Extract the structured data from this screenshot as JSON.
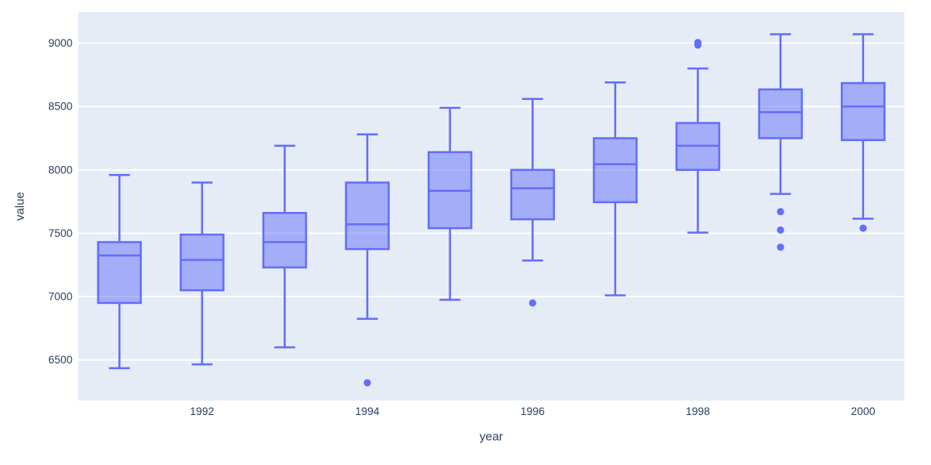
{
  "chart_data": {
    "type": "box",
    "title": "",
    "xlabel": "year",
    "ylabel": "value",
    "x_ticks": [
      1992,
      1994,
      1996,
      1998,
      2000
    ],
    "y_ticks": [
      6500,
      7000,
      7500,
      8000,
      8500,
      9000
    ],
    "x_range": [
      1990.5,
      2000.5
    ],
    "y_range": [
      6180,
      9245
    ],
    "grid": "horizontal-only",
    "legend": "none",
    "series": [
      {
        "year": 1991,
        "low": 6435,
        "q1": 6950,
        "median": 7325,
        "q3": 7430,
        "high": 7960,
        "outliers": []
      },
      {
        "year": 1992,
        "low": 6465,
        "q1": 7050,
        "median": 7290,
        "q3": 7490,
        "high": 7900,
        "outliers": []
      },
      {
        "year": 1993,
        "low": 6600,
        "q1": 7230,
        "median": 7430,
        "q3": 7660,
        "high": 8190,
        "outliers": []
      },
      {
        "year": 1994,
        "low": 6825,
        "q1": 7375,
        "median": 7570,
        "q3": 7900,
        "high": 8280,
        "outliers": [
          6320
        ]
      },
      {
        "year": 1995,
        "low": 6975,
        "q1": 7540,
        "median": 7835,
        "q3": 8140,
        "high": 8490,
        "outliers": []
      },
      {
        "year": 1996,
        "low": 7285,
        "q1": 7610,
        "median": 7855,
        "q3": 8000,
        "high": 8560,
        "outliers": [
          6950
        ]
      },
      {
        "year": 1997,
        "low": 7010,
        "q1": 7745,
        "median": 8045,
        "q3": 8250,
        "high": 8690,
        "outliers": []
      },
      {
        "year": 1998,
        "low": 7505,
        "q1": 8000,
        "median": 8190,
        "q3": 8370,
        "high": 8800,
        "outliers": [
          8985,
          9005
        ]
      },
      {
        "year": 1999,
        "low": 7810,
        "q1": 8250,
        "median": 8455,
        "q3": 8635,
        "high": 9070,
        "outliers": [
          7670,
          7525,
          7390
        ]
      },
      {
        "year": 2000,
        "low": 7615,
        "q1": 8235,
        "median": 8500,
        "q3": 8685,
        "high": 9070,
        "outliers": [
          7540
        ]
      }
    ],
    "colors": {
      "box_line": "#636efa",
      "box_fill": "rgba(99,110,250,0.5)",
      "outlier": "#636efa",
      "plot_background": "#e5ecf6",
      "gridline": "#ffffff",
      "text": "#2a3f5f",
      "paper_background": "#ffffff"
    }
  }
}
